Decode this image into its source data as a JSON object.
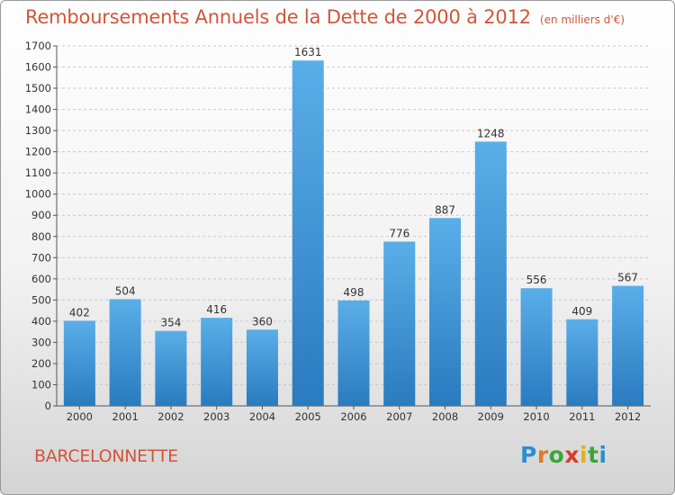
{
  "header": {
    "title": "Remboursements Annuels de la Dette de 2000 à 2012",
    "unit": "(en milliers d'€)"
  },
  "footer": {
    "town": "BARCELONNETTE",
    "brand": "Proxiti",
    "brand_letters": [
      "P",
      "r",
      "o",
      "x",
      "i",
      "t",
      "i"
    ],
    "brand_colors": [
      "#2a8fd0",
      "#e07b22",
      "#3aa63a",
      "#d83a2a",
      "#e0b020",
      "#3aa63a",
      "#2a8fd0"
    ]
  },
  "chart_data": {
    "type": "bar",
    "categories": [
      "2000",
      "2001",
      "2002",
      "2003",
      "2004",
      "2005",
      "2006",
      "2007",
      "2008",
      "2009",
      "2010",
      "2011",
      "2012"
    ],
    "values": [
      402,
      504,
      354,
      416,
      360,
      1631,
      498,
      776,
      887,
      1248,
      556,
      409,
      567
    ],
    "ylim": [
      0,
      1700
    ],
    "yticks": [
      0,
      100,
      200,
      300,
      400,
      500,
      600,
      700,
      800,
      900,
      1000,
      1100,
      1200,
      1300,
      1400,
      1500,
      1600,
      1700
    ],
    "grid": true,
    "bar_color_top": "#5aaee8",
    "bar_color_bottom": "#2a7bbf",
    "data_labels": true
  }
}
